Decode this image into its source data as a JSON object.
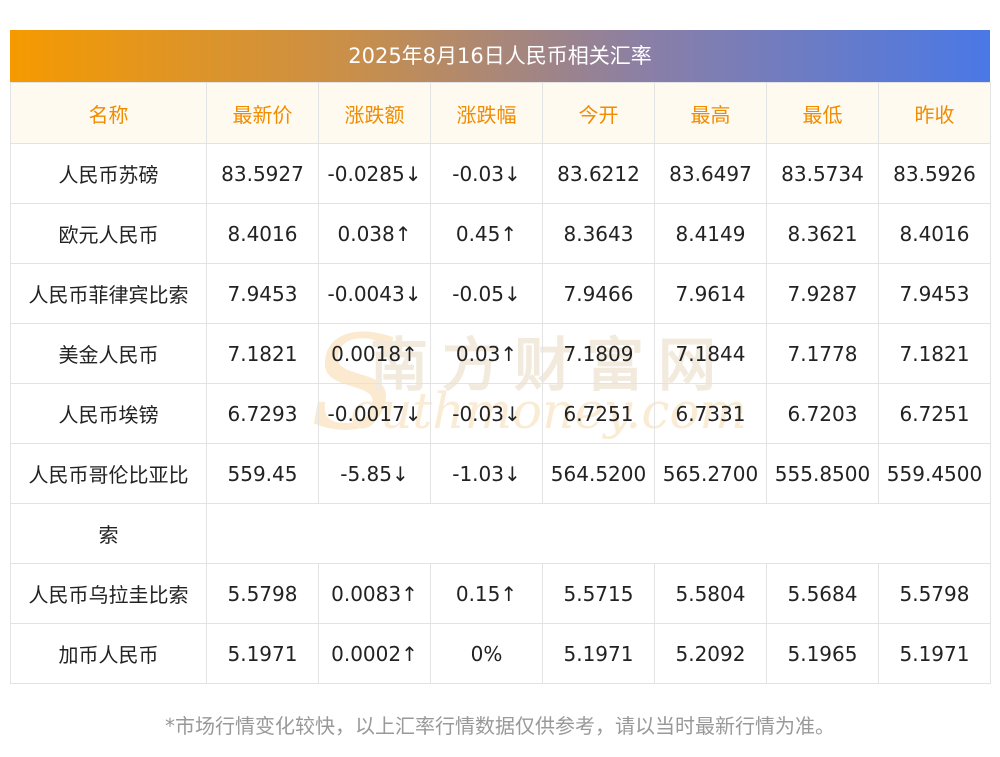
{
  "title": "2025年8月16日人民币相关汇率",
  "headers": [
    "名称",
    "最新价",
    "涨跌额",
    "涨跌幅",
    "今开",
    "最高",
    "最低",
    "昨收"
  ],
  "rows": [
    {
      "name": "人民币苏磅",
      "latest": "83.5927",
      "change": "-0.0285↓",
      "pct": "-0.03↓",
      "open": "83.6212",
      "high": "83.6497",
      "low": "83.5734",
      "prev": "83.5926",
      "trend": "down"
    },
    {
      "name": "欧元人民币",
      "latest": "8.4016",
      "change": "0.038↑",
      "pct": "0.45↑",
      "open": "8.3643",
      "high": "8.4149",
      "low": "8.3621",
      "prev": "8.4016",
      "trend": "up"
    },
    {
      "name": "人民币菲律宾比索",
      "latest": "7.9453",
      "change": "-0.0043↓",
      "pct": "-0.05↓",
      "open": "7.9466",
      "high": "7.9614",
      "low": "7.9287",
      "prev": "7.9453",
      "trend": "down"
    },
    {
      "name": "美金人民币",
      "latest": "7.1821",
      "change": "0.0018↑",
      "pct": "0.03↑",
      "open": "7.1809",
      "high": "7.1844",
      "low": "7.1778",
      "prev": "7.1821",
      "trend": "up"
    },
    {
      "name": "人民币埃镑",
      "latest": "6.7293",
      "change": "-0.0017↓",
      "pct": "-0.03↓",
      "open": "6.7251",
      "high": "6.7331",
      "low": "6.7203",
      "prev": "6.7251",
      "trend": "down"
    },
    {
      "name_line1": "人民币哥伦比亚比",
      "name_line2": "索",
      "latest": "559.45",
      "change": "-5.85↓",
      "pct": "-1.03↓",
      "open": "564.5200",
      "high": "565.2700",
      "low": "555.8500",
      "prev": "559.4500",
      "trend": "down"
    },
    {
      "name": "人民币乌拉圭比索",
      "latest": "5.5798",
      "change": "0.0083↑",
      "pct": "0.15↑",
      "open": "5.5715",
      "high": "5.5804",
      "low": "5.5684",
      "prev": "5.5798",
      "trend": "up"
    },
    {
      "name": "加币人民币",
      "latest": "5.1971",
      "change": "0.0002↑",
      "pct": "0%",
      "open": "5.1971",
      "high": "5.2092",
      "low": "5.1965",
      "prev": "5.1971",
      "trend": "mixed"
    }
  ],
  "footnote": "*市场行情变化较快，以上汇率行情数据仅供参考，请以当时最新行情为准。",
  "watermark": {
    "cn": "南方财富网",
    "en": "outhmoney.com",
    "s": "S"
  },
  "colors": {
    "up": "#e0191d",
    "down": "#0a7d1c",
    "header_text": "#f08c00"
  }
}
